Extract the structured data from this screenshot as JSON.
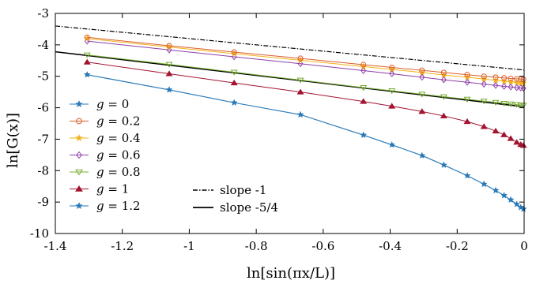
{
  "chart_data": {
    "type": "line",
    "xlabel": "ln[sin(πx/L)]",
    "ylabel": "ln[G(x)]",
    "xlim": [
      -1.4,
      0
    ],
    "ylim": [
      -10,
      -3
    ],
    "xticks": [
      -1.4,
      -1.2,
      -1,
      -0.8,
      -0.6,
      -0.4,
      -0.2,
      0
    ],
    "yticks": [
      -10,
      -9,
      -8,
      -7,
      -6,
      -5,
      -4,
      -3
    ],
    "x_tick_labels": [
      "-1.4",
      "-1.2",
      "-1",
      "-0.8",
      "-0.6",
      "-0.4",
      "-0.2",
      "0"
    ],
    "y_tick_labels": [
      "-10",
      "-9",
      "-8",
      "-7",
      "-6",
      "-5",
      "-4",
      "-3"
    ],
    "grid": false,
    "legend_position": "left",
    "x": [
      -1.305,
      -1.06,
      -0.866,
      -0.668,
      -0.48,
      -0.395,
      -0.305,
      -0.24,
      -0.17,
      -0.12,
      -0.085,
      -0.06,
      -0.04,
      -0.022,
      -0.01,
      -0.002
    ],
    "series": [
      {
        "name": "g = 0",
        "color": "#2a7ab8",
        "marker": "star",
        "values": [
          -4.95,
          -5.43,
          -5.84,
          -6.22,
          -6.87,
          -7.18,
          -7.52,
          -7.82,
          -8.16,
          -8.43,
          -8.63,
          -8.79,
          -8.93,
          -9.07,
          -9.17,
          -9.22
        ]
      },
      {
        "name": "g = 0.2",
        "color": "#d95f2b",
        "marker": "circle",
        "values": [
          -3.76,
          -4.03,
          -4.23,
          -4.43,
          -4.63,
          -4.72,
          -4.81,
          -4.88,
          -4.95,
          -5.0,
          -5.03,
          -5.05,
          -5.07,
          -5.08,
          -5.09,
          -5.1
        ]
      },
      {
        "name": "g = 0.4",
        "color": "#f2b21c",
        "marker": "star",
        "values": [
          -3.8,
          -4.07,
          -4.28,
          -4.49,
          -4.69,
          -4.78,
          -4.88,
          -4.96,
          -5.03,
          -5.09,
          -5.13,
          -5.16,
          -5.18,
          -5.2,
          -5.21,
          -5.22
        ]
      },
      {
        "name": "g = 0.6",
        "color": "#8e3fa8",
        "marker": "diamond",
        "values": [
          -3.88,
          -4.16,
          -4.38,
          -4.6,
          -4.82,
          -4.92,
          -5.03,
          -5.11,
          -5.19,
          -5.25,
          -5.29,
          -5.32,
          -5.34,
          -5.36,
          -5.37,
          -5.38
        ]
      },
      {
        "name": "g = 0.8",
        "color": "#77ac30",
        "marker": "triangle-down",
        "values": [
          -4.32,
          -4.62,
          -4.87,
          -5.12,
          -5.36,
          -5.46,
          -5.57,
          -5.65,
          -5.73,
          -5.79,
          -5.83,
          -5.86,
          -5.88,
          -5.9,
          -5.91,
          -5.92
        ]
      },
      {
        "name": "g = 1",
        "color": "#a2142f",
        "marker": "triangle-up",
        "values": [
          -4.55,
          -4.92,
          -5.21,
          -5.5,
          -5.8,
          -5.95,
          -6.12,
          -6.26,
          -6.44,
          -6.6,
          -6.74,
          -6.86,
          -6.98,
          -7.1,
          -7.17,
          -7.2
        ]
      },
      {
        "name": "g = 1.2",
        "color": "#2a7ab8",
        "marker": "star",
        "values": [
          -4.95,
          -5.43,
          -5.84,
          -6.22,
          -6.87,
          -7.18,
          -7.52,
          -7.82,
          -8.16,
          -8.43,
          -8.63,
          -8.79,
          -8.93,
          -9.07,
          -9.17,
          -9.22
        ]
      }
    ],
    "reference_lines": [
      {
        "name": "slope -1",
        "style": "dash-dot",
        "slope": -1,
        "intercept": -4.8,
        "x_range": [
          -1.4,
          0
        ]
      },
      {
        "name": "slope -5/4",
        "style": "solid",
        "slope": -1.25,
        "intercept": -5.97,
        "x_range": [
          -1.4,
          0
        ]
      }
    ]
  }
}
